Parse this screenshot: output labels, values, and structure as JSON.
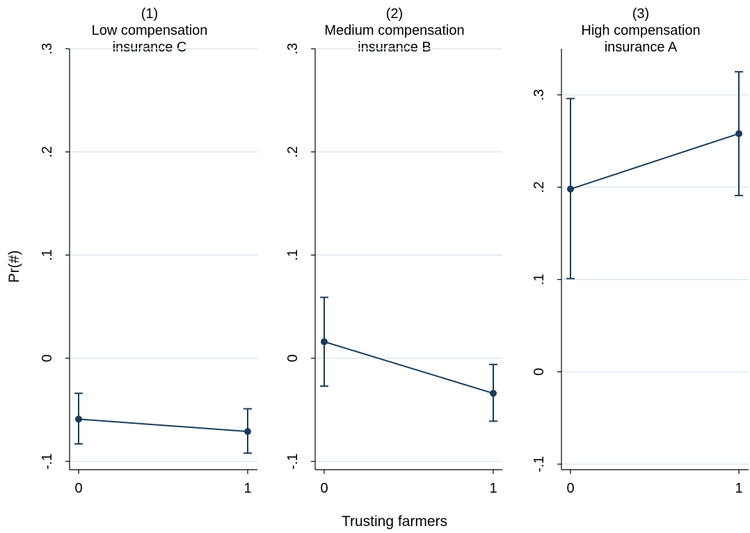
{
  "chart_data": [
    {
      "type": "line",
      "title_lines": [
        "(1)",
        "Low compensation",
        "insurance C"
      ],
      "x": [
        0,
        1
      ],
      "x_ticks": [
        "0",
        "1"
      ],
      "y_ticks": [
        -0.1,
        0,
        0.1,
        0.2,
        0.3
      ],
      "y_tick_labels": [
        "-.1",
        "0",
        ".1",
        ".2",
        ".3"
      ],
      "ylim": [
        -0.108,
        0.3
      ],
      "series": [
        {
          "values": [
            -0.059,
            -0.071
          ],
          "ci_low": [
            -0.083,
            -0.092
          ],
          "ci_high": [
            -0.034,
            -0.049
          ]
        }
      ]
    },
    {
      "type": "line",
      "title_lines": [
        "(2)",
        "Medium compensation",
        "insurance B"
      ],
      "x": [
        0,
        1
      ],
      "x_ticks": [
        "0",
        "1"
      ],
      "y_ticks": [
        -0.1,
        0,
        0.1,
        0.2,
        0.3
      ],
      "y_tick_labels": [
        "-.1",
        "0",
        ".1",
        ".2",
        ".3"
      ],
      "ylim": [
        -0.108,
        0.3
      ],
      "series": [
        {
          "values": [
            0.016,
            -0.034
          ],
          "ci_low": [
            -0.027,
            -0.061
          ],
          "ci_high": [
            0.059,
            -0.006
          ]
        }
      ]
    },
    {
      "type": "line",
      "title_lines": [
        "(3)",
        "High compensation",
        "insurance A"
      ],
      "x": [
        0,
        1
      ],
      "x_ticks": [
        "0",
        "1"
      ],
      "y_ticks": [
        -0.1,
        0,
        0.1,
        0.2,
        0.3
      ],
      "y_tick_labels": [
        "-.1",
        "0",
        ".1",
        ".2",
        ".3"
      ],
      "ylim": [
        -0.106,
        0.35
      ],
      "series": [
        {
          "values": [
            0.198,
            0.258
          ],
          "ci_low": [
            0.101,
            0.191
          ],
          "ci_high": [
            0.296,
            0.325
          ]
        }
      ]
    }
  ],
  "ylabel": "Pr(#)",
  "xlabel": "Trusting farmers",
  "colors": {
    "series": "#1a3c5c",
    "grid": "#dde8ec",
    "background": "#ffffff"
  },
  "grid": "horizontal"
}
